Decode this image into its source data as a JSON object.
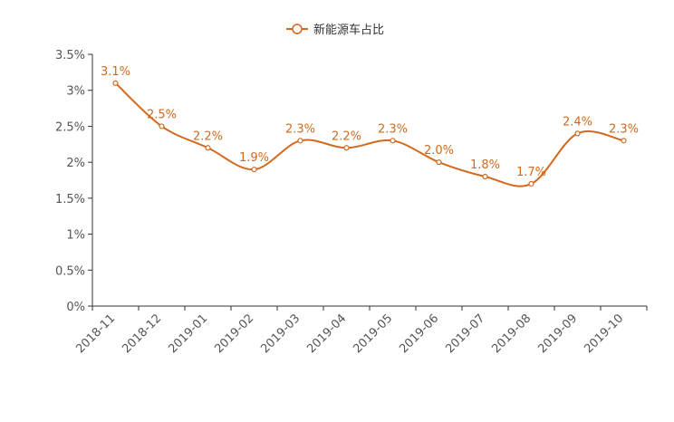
{
  "chart_data": {
    "type": "line",
    "categories": [
      "2018-11",
      "2018-12",
      "2019-01",
      "2019-02",
      "2019-03",
      "2019-04",
      "2019-05",
      "2019-06",
      "2019-07",
      "2019-08",
      "2019-09",
      "2019-10"
    ],
    "series": [
      {
        "name": "新能源车占比",
        "values": [
          3.1,
          2.5,
          2.2,
          1.9,
          2.3,
          2.2,
          2.3,
          2.0,
          1.8,
          1.7,
          2.4,
          2.3
        ],
        "data_labels": [
          "3.1%",
          "2.5%",
          "2.2%",
          "1.9%",
          "2.3%",
          "2.2%",
          "2.3%",
          "2.0%",
          "1.8%",
          "1.7%",
          "2.4%",
          "2.3%"
        ],
        "color": "#d2691e"
      }
    ],
    "y_ticks": [
      "0%",
      "0.5%",
      "1%",
      "1.5%",
      "2%",
      "2.5%",
      "3%",
      "3.5%"
    ],
    "ylim": [
      0,
      3.5
    ],
    "smooth": true,
    "grid": false,
    "legend_position": "top-center",
    "x_label_rotation": -45
  }
}
